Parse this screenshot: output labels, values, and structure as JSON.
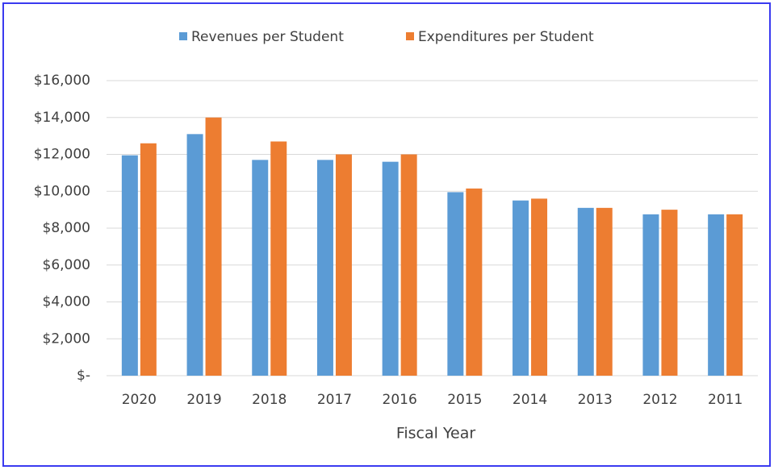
{
  "chart_data": {
    "type": "bar",
    "x_label": "Fiscal Year",
    "categories": [
      "2020",
      "2019",
      "2018",
      "2017",
      "2016",
      "2015",
      "2014",
      "2013",
      "2012",
      "2011"
    ],
    "series": [
      {
        "name": "Revenues per Student",
        "color": "#5b9bd5",
        "values": [
          11950,
          13100,
          11700,
          11700,
          11600,
          9950,
          9500,
          9100,
          8750,
          8750
        ]
      },
      {
        "name": "Expenditures per Student",
        "color": "#ed7d31",
        "values": [
          12600,
          14000,
          12700,
          12000,
          12000,
          10150,
          9600,
          9100,
          9000,
          8750
        ]
      }
    ],
    "ylim": [
      0,
      16000
    ],
    "yticks": [
      {
        "value": 0,
        "label": "$-"
      },
      {
        "value": 2000,
        "label": "$2,000"
      },
      {
        "value": 4000,
        "label": "$4,000"
      },
      {
        "value": 6000,
        "label": "$6,000"
      },
      {
        "value": 8000,
        "label": "$8,000"
      },
      {
        "value": 10000,
        "label": "$10,000"
      },
      {
        "value": 12000,
        "label": "$12,000"
      },
      {
        "value": 14000,
        "label": "$14,000"
      },
      {
        "value": 16000,
        "label": "$16,000"
      }
    ],
    "grid": true,
    "legend": "top"
  }
}
